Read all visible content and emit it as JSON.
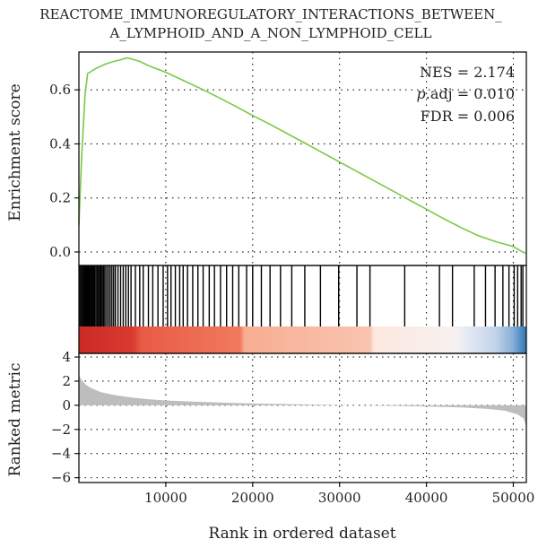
{
  "chart_data": {
    "type": "line",
    "title_lines": [
      "REACTOME_IMMUNOREGULATORY_INTERACTIONS_BETWEEN_",
      "A_LYMPHOID_AND_A_NON_LYMPHOID_CELL"
    ],
    "colors": {
      "curve": "#7ac943",
      "metric_fill": "#bdbdbd",
      "hit_line": "#000000",
      "heat_stops": [
        "#cb2a27",
        "#e3553d",
        "#f07a5d",
        "#f7b49a",
        "#fbe6dc",
        "#dfe6f2",
        "#a9c3e0",
        "#2f7bb7"
      ]
    },
    "x": {
      "label": "Rank in ordered dataset",
      "range": [
        0,
        51500
      ],
      "ticks": [
        10000,
        20000,
        30000,
        40000,
        50000
      ],
      "tick_labels": [
        "10000",
        "20000",
        "30000",
        "40000",
        "50000"
      ]
    },
    "enrichment": {
      "ylabel": "Enrichment score",
      "ylim": [
        -0.05,
        0.74
      ],
      "ticks": [
        0.0,
        0.2,
        0.4,
        0.6
      ],
      "tick_labels": [
        "0.0",
        "0.2",
        "0.4",
        "0.6"
      ],
      "curve": [
        [
          0,
          0.1
        ],
        [
          300,
          0.34
        ],
        [
          700,
          0.58
        ],
        [
          1000,
          0.66
        ],
        [
          2000,
          0.68
        ],
        [
          3000,
          0.695
        ],
        [
          4000,
          0.705
        ],
        [
          5000,
          0.713
        ],
        [
          5500,
          0.718
        ],
        [
          6000,
          0.715
        ],
        [
          7000,
          0.705
        ],
        [
          8000,
          0.69
        ],
        [
          10000,
          0.665
        ],
        [
          12000,
          0.635
        ],
        [
          14000,
          0.605
        ],
        [
          16000,
          0.573
        ],
        [
          18000,
          0.54
        ],
        [
          20000,
          0.505
        ],
        [
          22000,
          0.472
        ],
        [
          24000,
          0.438
        ],
        [
          26000,
          0.403
        ],
        [
          28000,
          0.368
        ],
        [
          30000,
          0.333
        ],
        [
          32000,
          0.298
        ],
        [
          34000,
          0.263
        ],
        [
          36000,
          0.228
        ],
        [
          38000,
          0.193
        ],
        [
          40000,
          0.158
        ],
        [
          42000,
          0.123
        ],
        [
          44000,
          0.09
        ],
        [
          46000,
          0.06
        ],
        [
          48000,
          0.038
        ],
        [
          50000,
          0.02
        ],
        [
          50800,
          0.005
        ],
        [
          51400,
          -0.005
        ]
      ]
    },
    "stats": {
      "nes": "NES = 2.174",
      "padj_italic": "p",
      "padj_rest": ".adj = 0.010",
      "fdr": "FDR = 0.006"
    },
    "hits": [
      120,
      260,
      400,
      520,
      640,
      760,
      880,
      1000,
      1100,
      1200,
      1320,
      1440,
      1560,
      1680,
      1800,
      1950,
      2100,
      2250,
      2400,
      2550,
      2700,
      2850,
      3000,
      3200,
      3400,
      3600,
      3800,
      4000,
      4200,
      4500,
      4800,
      5100,
      5400,
      5700,
      6000,
      6500,
      7000,
      7400,
      8000,
      8500,
      9100,
      9700,
      10200,
      10600,
      11100,
      11600,
      12000,
      12500,
      13100,
      13700,
      14300,
      15000,
      15600,
      16300,
      17000,
      17700,
      18400,
      19300,
      20000,
      21000,
      22000,
      23200,
      24500,
      26000,
      27800,
      29900,
      32000,
      33500,
      37500,
      41500,
      43000,
      45500,
      46800,
      47900,
      48800,
      49500,
      50100,
      50500,
      50900,
      51100
    ],
    "metric": {
      "ylabel": "Ranked metric",
      "ylim": [
        -6.4,
        4.3
      ],
      "ticks": [
        4,
        2,
        0,
        -2,
        -4,
        -6
      ],
      "tick_labels": [
        "4",
        "2",
        "0",
        "−2",
        "−4",
        "−6"
      ],
      "curve": [
        [
          0,
          2.5
        ],
        [
          300,
          2.1
        ],
        [
          800,
          1.7
        ],
        [
          1500,
          1.4
        ],
        [
          2500,
          1.1
        ],
        [
          4000,
          0.85
        ],
        [
          6000,
          0.65
        ],
        [
          8000,
          0.5
        ],
        [
          10000,
          0.4
        ],
        [
          13000,
          0.3
        ],
        [
          16000,
          0.23
        ],
        [
          20000,
          0.15
        ],
        [
          25000,
          0.08
        ],
        [
          30000,
          0.02
        ],
        [
          35000,
          -0.04
        ],
        [
          40000,
          -0.1
        ],
        [
          44000,
          -0.18
        ],
        [
          47000,
          -0.3
        ],
        [
          49000,
          -0.45
        ],
        [
          50500,
          -0.75
        ],
        [
          51200,
          -1.1
        ],
        [
          51500,
          -1.8
        ]
      ]
    }
  }
}
